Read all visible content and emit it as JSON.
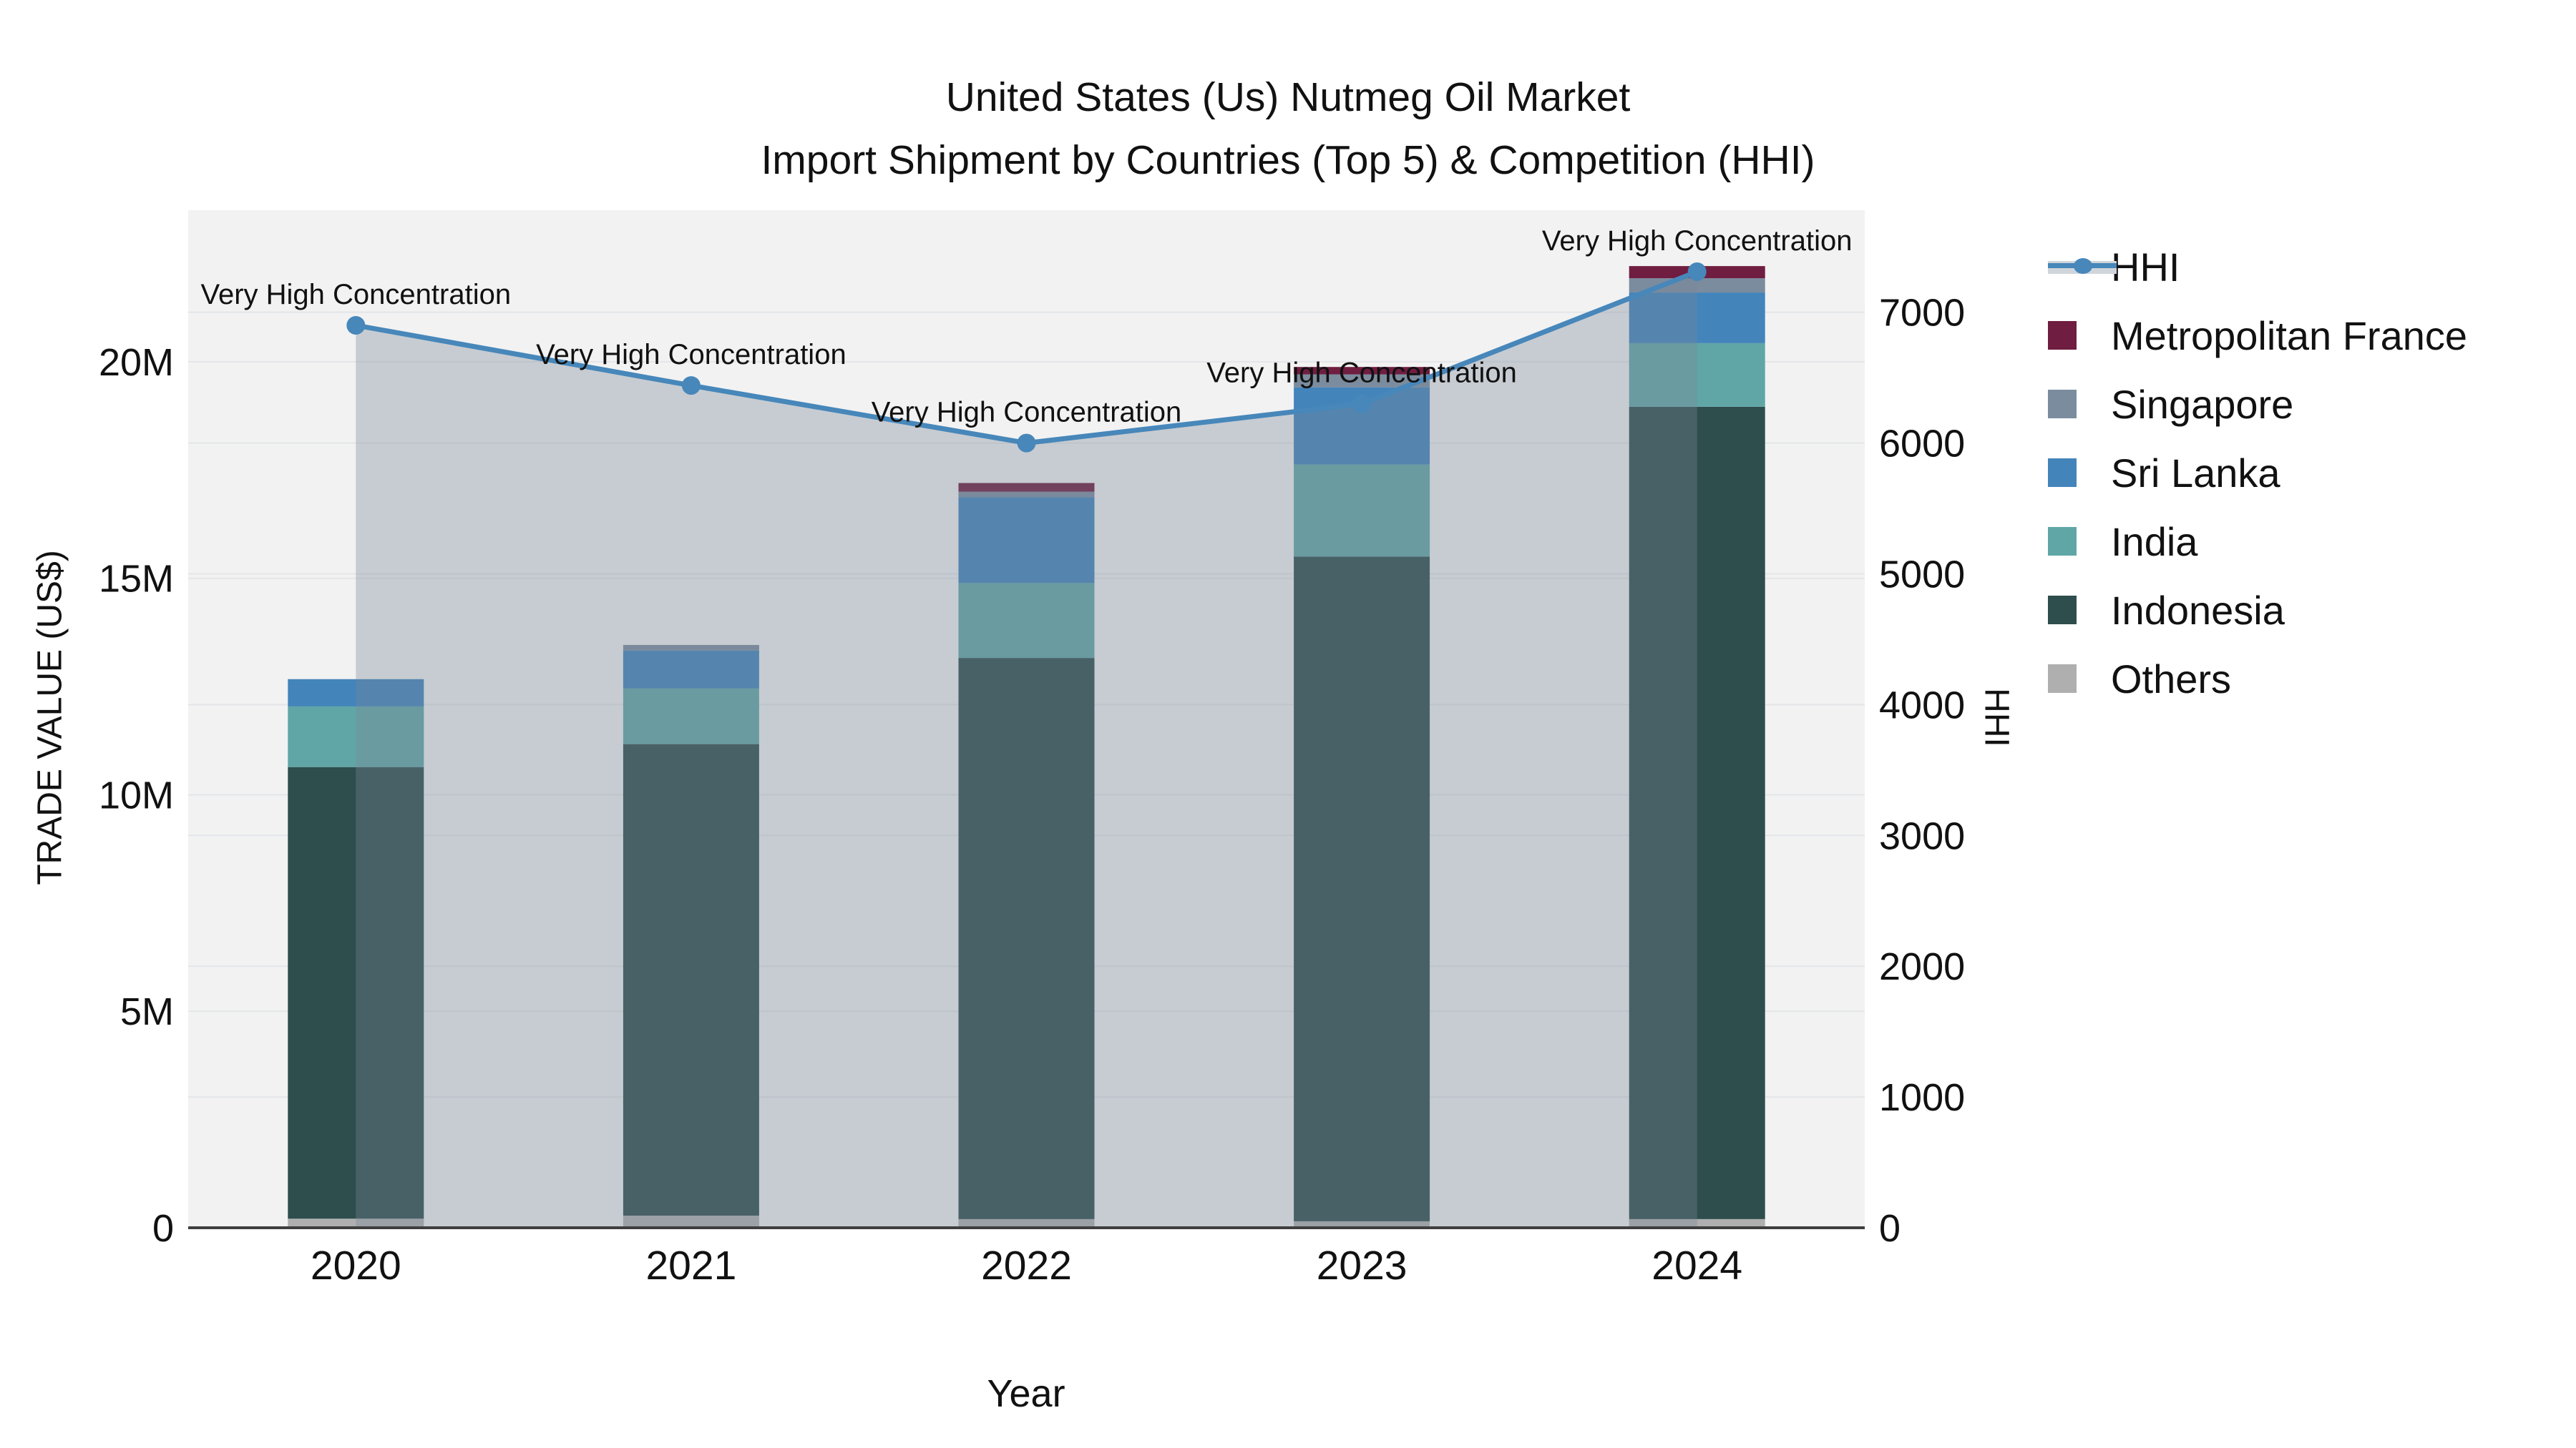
{
  "title": {
    "line1": "United States (Us) Nutmeg Oil Market",
    "line2": "Import Shipment by Countries (Top 5) & Competition (HHI)"
  },
  "axes": {
    "x": {
      "title": "Year",
      "tick_labels": [
        "2020",
        "2021",
        "2022",
        "2023",
        "2024"
      ]
    },
    "y_left": {
      "title": "TRADE VALUE (US$)",
      "tick_labels": [
        "0",
        "5M",
        "10M",
        "15M",
        "20M"
      ],
      "tick_values": [
        0,
        5,
        10,
        15,
        20
      ],
      "max": 23.5,
      "unit": "million US$"
    },
    "y_right": {
      "title": "HHI",
      "tick_labels": [
        "0",
        "1000",
        "2000",
        "3000",
        "4000",
        "5000",
        "6000",
        "7000"
      ],
      "tick_values": [
        0,
        1000,
        2000,
        3000,
        4000,
        5000,
        6000,
        7000
      ],
      "max": 7780
    }
  },
  "legend": [
    {
      "label": "HHI",
      "type": "line",
      "color": "#4787BA"
    },
    {
      "label": "Metropolitan France",
      "type": "square",
      "color": "#6F1D40"
    },
    {
      "label": "Singapore",
      "type": "square",
      "color": "#7B8C9E"
    },
    {
      "label": "Sri Lanka",
      "type": "square",
      "color": "#4384BB"
    },
    {
      "label": "India",
      "type": "square",
      "color": "#61A6A6"
    },
    {
      "label": "Indonesia",
      "type": "square",
      "color": "#2E4D4D"
    },
    {
      "label": "Others",
      "type": "square",
      "color": "#AFAFAF"
    }
  ],
  "chart_data": {
    "type": "combo: stacked bar (trade value) + line with area fill (HHI)",
    "categories": [
      "2020",
      "2021",
      "2022",
      "2023",
      "2024"
    ],
    "bar_unit": "million US$",
    "stack_order_bottom_to_top": [
      "Others",
      "Indonesia",
      "India",
      "Sri Lanka",
      "Singapore",
      "Metropolitan France"
    ],
    "series": [
      {
        "name": "Others",
        "color": "#AFAFAF",
        "values": [
          0.21,
          0.28,
          0.2,
          0.15,
          0.2
        ]
      },
      {
        "name": "Indonesia",
        "color": "#2E4D4D",
        "values": [
          10.43,
          10.89,
          12.96,
          15.35,
          18.76
        ]
      },
      {
        "name": "India",
        "color": "#61A6A6",
        "values": [
          1.4,
          1.29,
          1.73,
          2.13,
          1.47
        ]
      },
      {
        "name": "Sri Lanka",
        "color": "#4384BB",
        "values": [
          0.63,
          0.87,
          1.98,
          1.78,
          1.17
        ]
      },
      {
        "name": "Singapore",
        "color": "#7B8C9E",
        "values": [
          0.0,
          0.13,
          0.13,
          0.3,
          0.33
        ]
      },
      {
        "name": "Metropolitan France",
        "color": "#6F1D40",
        "values": [
          0.0,
          0.0,
          0.2,
          0.17,
          0.28
        ]
      }
    ],
    "bar_totals": [
      12.67,
      13.46,
      17.2,
      19.88,
      22.21
    ],
    "line": {
      "name": "HHI",
      "color": "#4787BA",
      "values": [
        6900,
        6440,
        6000,
        6300,
        7310
      ],
      "area_fill": "rgba(119,136,153,0.35)"
    },
    "annotations": [
      "Very High Concentration",
      "Very High Concentration",
      "Very High Concentration",
      "Very High Concentration",
      "Very High Concentration"
    ],
    "grid": "horizontal gridlines for both y axes",
    "legend_position": "right"
  },
  "colors": {
    "background": "#ffffff",
    "plot_background": "#f2f2f2",
    "gridline": "#e3e5e8",
    "axis_line": "#3f3f3f",
    "text": "#111111",
    "hhi_line": "#4787BA",
    "hhi_area_fill": "rgba(119,136,153,0.35)",
    "hhi_legend_band": "#cfd5db"
  }
}
